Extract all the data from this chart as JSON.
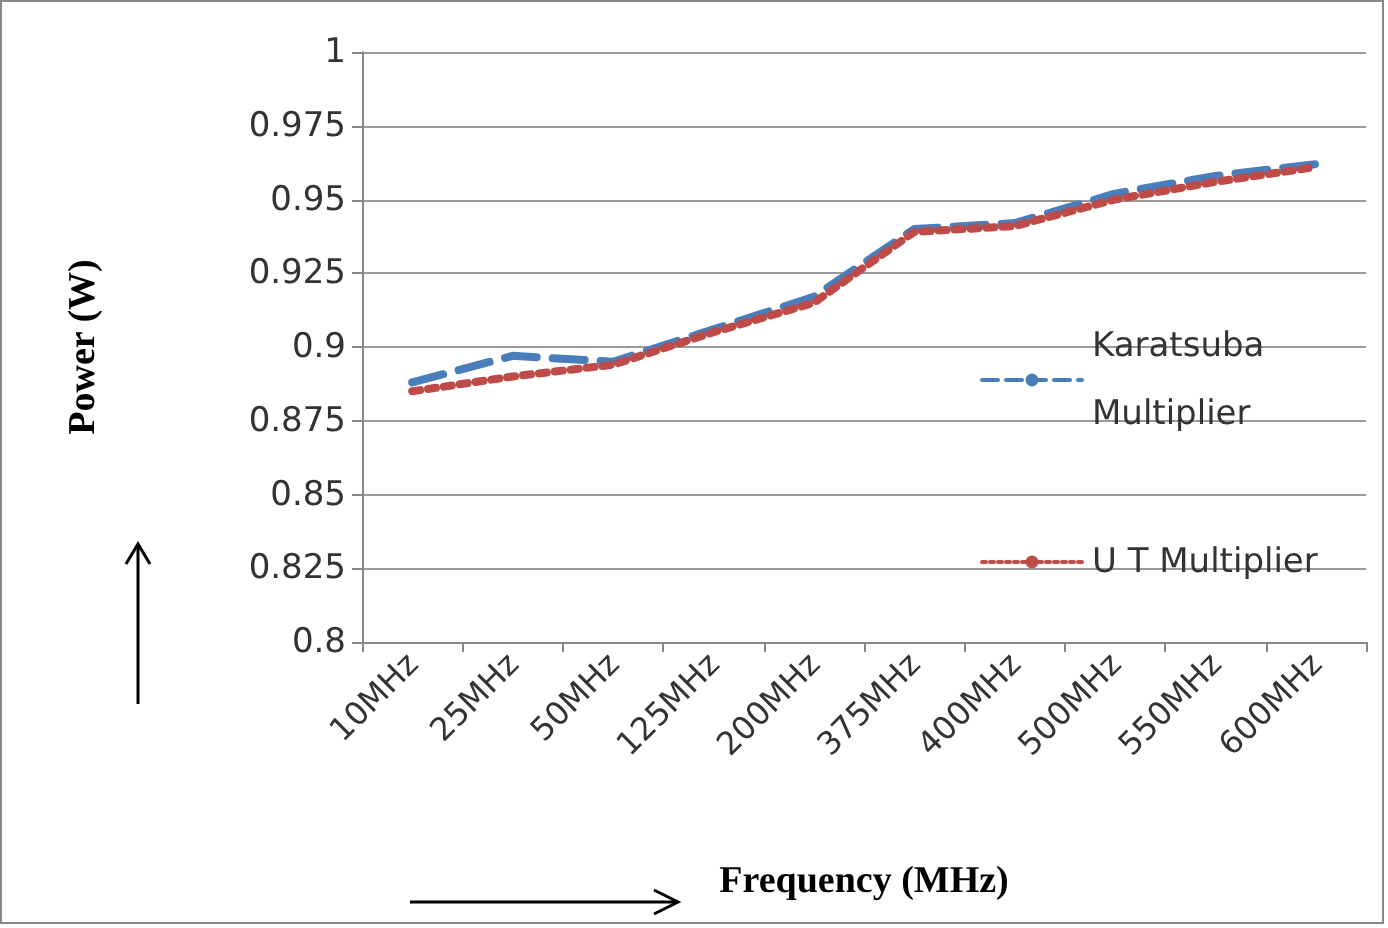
{
  "chart_data": {
    "type": "line",
    "xlabel": "Frequency (MHz)",
    "ylabel": "Power (W)",
    "categories": [
      "10MHz",
      "25MHz",
      "50MHz",
      "125MHz",
      "200MHz",
      "375MHz",
      "400MHz",
      "500MHz",
      "550MHz",
      "600MHz"
    ],
    "series": [
      {
        "name": "Karatsuba Multiplier",
        "color": "#4a7ebb",
        "line_style": "dashed",
        "values": [
          0.888,
          0.897,
          0.895,
          0.906,
          0.917,
          0.94,
          0.942,
          0.952,
          0.958,
          0.962
        ]
      },
      {
        "name": "U T Multiplier",
        "color": "#be4b48",
        "line_style": "dotted",
        "values": [
          0.885,
          0.89,
          0.894,
          0.905,
          0.915,
          0.939,
          0.941,
          0.95,
          0.956,
          0.961
        ]
      }
    ],
    "ylim": [
      0.8,
      1
    ],
    "yticks": [
      0.8,
      0.825,
      0.85,
      0.875,
      0.9,
      0.925,
      0.95,
      0.975,
      1
    ],
    "grid": "y",
    "legend": "right",
    "marker": "none"
  }
}
